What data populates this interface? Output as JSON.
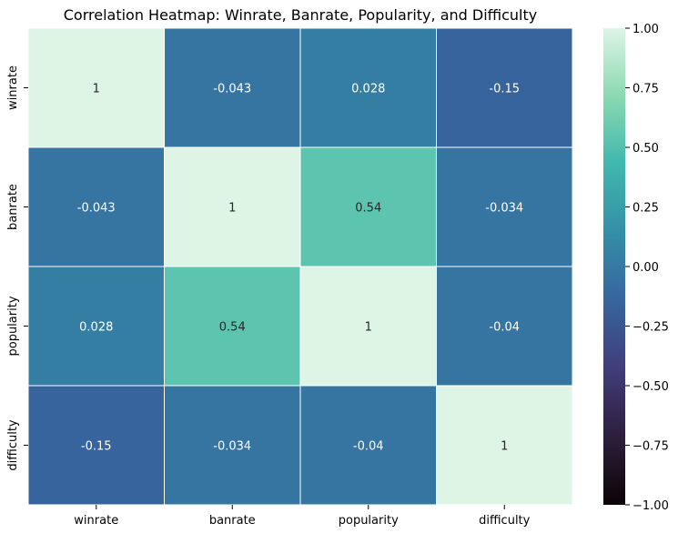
{
  "chart_data": {
    "type": "heatmap",
    "title": "Correlation Heatmap: Winrate, Banrate, Popularity, and Difficulty",
    "xlabel": "",
    "ylabel": "",
    "x_categories": [
      "winrate",
      "banrate",
      "popularity",
      "difficulty"
    ],
    "y_categories": [
      "winrate",
      "banrate",
      "popularity",
      "difficulty"
    ],
    "values": [
      [
        1,
        -0.043,
        0.028,
        -0.15
      ],
      [
        -0.043,
        1,
        0.54,
        -0.034
      ],
      [
        0.028,
        0.54,
        1,
        -0.04
      ],
      [
        -0.15,
        -0.034,
        -0.04,
        1
      ]
    ],
    "annotations": [
      [
        "1",
        "-0.043",
        "0.028",
        "-0.15"
      ],
      [
        "-0.043",
        "1",
        "0.54",
        "-0.034"
      ],
      [
        "0.028",
        "0.54",
        "1",
        "-0.04"
      ],
      [
        "-0.15",
        "-0.034",
        "-0.04",
        "1"
      ]
    ],
    "colorbar": {
      "range": [
        -1,
        1
      ],
      "ticks": [
        -1,
        -0.75,
        -0.5,
        -0.25,
        0,
        0.25,
        0.5,
        0.75,
        1
      ],
      "tick_labels": [
        "−1.00",
        "−0.75",
        "−0.50",
        "−0.25",
        "0.00",
        "0.25",
        "0.50",
        "0.75",
        "1.00"
      ],
      "colormap": "mako",
      "stops": [
        "#0b0405",
        "#2e1e3c",
        "#413d7b",
        "#37659e",
        "#348fa7",
        "#40b7ad",
        "#8ad9b1",
        "#def5e5"
      ]
    },
    "cell_border_color": "#ffffff"
  }
}
